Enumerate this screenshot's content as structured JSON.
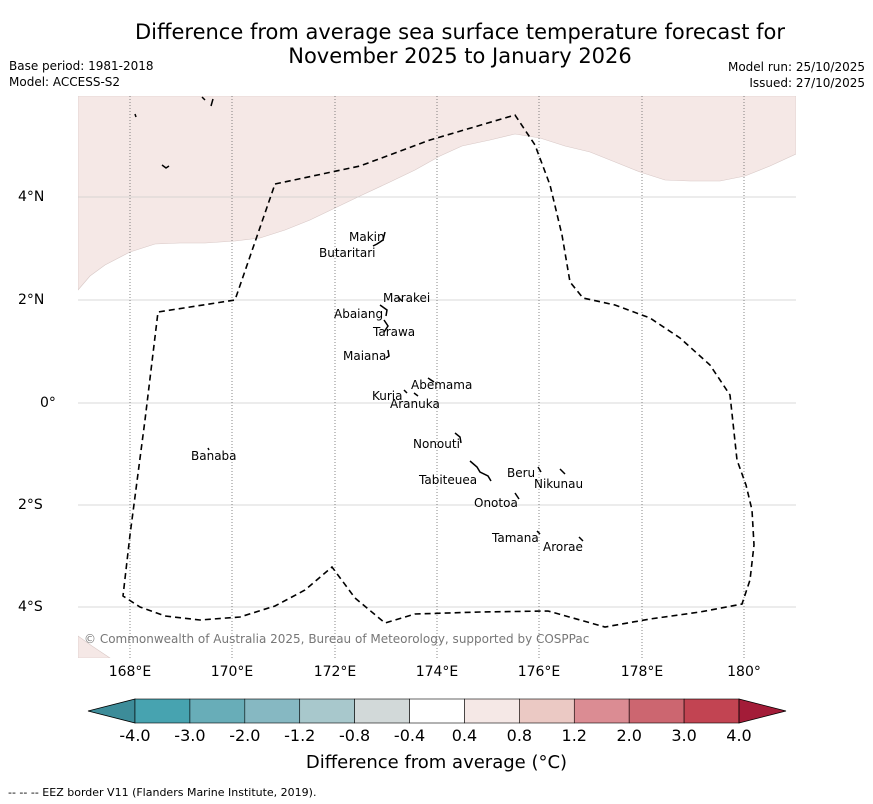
{
  "title_line1": "Difference from average sea surface temperature forecast for",
  "title_line2": "November 2025 to January 2026",
  "base_period": "Base period: 1981-2018",
  "model": "Model: ACCESS-S2",
  "model_run": "Model run: 25/10/2025",
  "issued": "Issued: 27/10/2025",
  "lat_labels": [
    "4°N",
    "2°N",
    "0°",
    "2°S",
    "4°S"
  ],
  "lon_labels": [
    "168°E",
    "170°E",
    "172°E",
    "174°E",
    "176°E",
    "178°E",
    "180°"
  ],
  "places": [
    "Makin",
    "Butaritari",
    "Marakei",
    "Abaiang",
    "Tarawa",
    "Maiana",
    "Abemama",
    "Kuria",
    "Aranuka",
    "Nonouti",
    "Banaba",
    "Beru",
    "Nikunau",
    "Tabiteuea",
    "Onotoa",
    "Tamana",
    "Arorae"
  ],
  "copyright": "© Commonwealth of Australia 2025, Bureau of Meteorology, supported by COSPPac",
  "colorbar": {
    "labels": [
      "-4.0",
      "-3.0",
      "-2.0",
      "-1.2",
      "-0.8",
      "-0.4",
      "0.4",
      "0.8",
      "1.2",
      "2.0",
      "3.0",
      "4.0"
    ],
    "colors": [
      "#3d8c99",
      "#47a3b0",
      "#68adb8",
      "#86b8c2",
      "#a8c8cc",
      "#d2d9d9",
      "#ffffff",
      "#f5e8e6",
      "#ebc9c4",
      "#db8c93",
      "#cc6670",
      "#c24452",
      "#a31c38"
    ],
    "title": "Difference from average (°C)"
  },
  "legend": "--  --  -- EEZ border V11 (Flanders Marine Institute, 2019)."
}
